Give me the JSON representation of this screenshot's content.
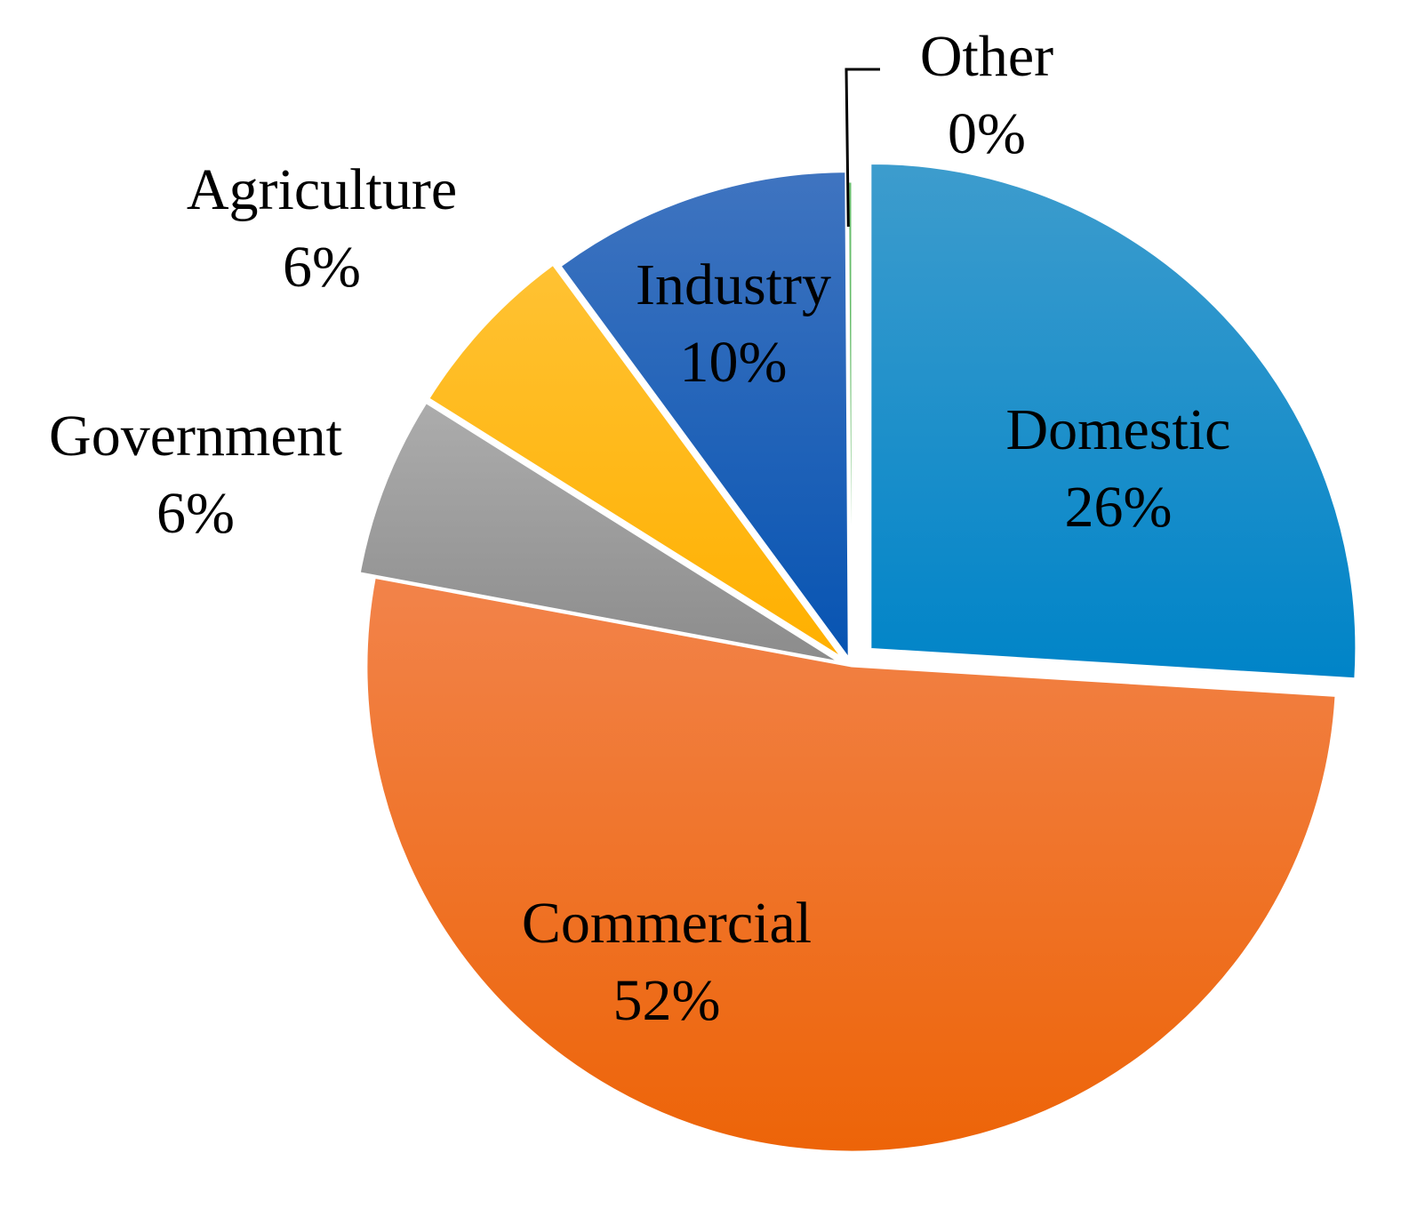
{
  "chart_data": {
    "type": "pie",
    "title": "",
    "slices": [
      {
        "name": "Domestic",
        "label": "26%",
        "value": 26,
        "color": "#0084c8",
        "color_light": "#3d9ccd"
      },
      {
        "name": "Commercial",
        "label": "52%",
        "value": 52,
        "color": "#ed6408",
        "color_light": "#f2834a"
      },
      {
        "name": "Government",
        "label": "6%",
        "value": 6,
        "color": "#8c8c8c",
        "color_light": "#acacac"
      },
      {
        "name": "Agriculture",
        "label": "6%",
        "value": 6,
        "color": "#ffb000",
        "color_light": "#ffc233"
      },
      {
        "name": "Industry",
        "label": "10%",
        "value": 10,
        "color": "#0754b2",
        "color_light": "#3f74c0"
      },
      {
        "name": "Other",
        "label": "0%",
        "value": 0.1,
        "color": "#4caf50",
        "color_light": "#6cc070"
      }
    ]
  }
}
